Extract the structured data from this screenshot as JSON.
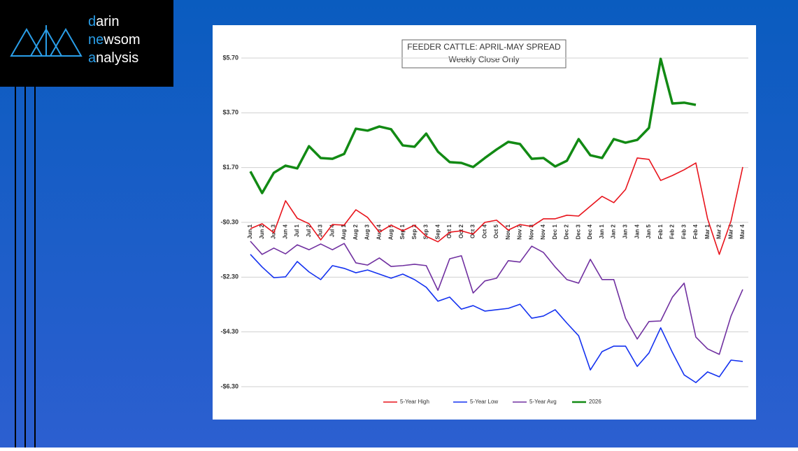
{
  "logo": [
    {
      "accent": "d",
      "rest": "arin"
    },
    {
      "accent": "ne",
      "rest": "wsom"
    },
    {
      "accent": "a",
      "rest": "nalysis"
    }
  ],
  "chart_data": {
    "type": "line",
    "title": "FEEDER CATTLE: APRIL-MAY SPREAD",
    "subtitle": "Weekly Close Only",
    "categories": [
      "Jun 1",
      "Jun 2",
      "Jun 3",
      "Jun 4",
      "Jul 1",
      "Jul 2",
      "Jul 3",
      "Jul 4",
      "Aug 1",
      "Aug 2",
      "Aug 3",
      "Aug 4",
      "Aug 5",
      "Sep 1",
      "Sep 2",
      "Sep 3",
      "Sep 4",
      "Oct 1",
      "Oct 2",
      "Oct 3",
      "Oct 4",
      "Oct 5",
      "Nov 1",
      "Nov 2",
      "Nov 3",
      "Nov 4",
      "Dec 1",
      "Dec 2",
      "Dec 3",
      "Dec 4",
      "Jan 1",
      "Jan 2",
      "Jan 3",
      "Jan 4",
      "Jan 5",
      "Feb 1",
      "Feb 2",
      "Feb 3",
      "Feb 4",
      "Mar 1",
      "Mar 2",
      "Mar 3",
      "Mar 4"
    ],
    "series": [
      {
        "name": "5-Year High",
        "color": "#e8141c",
        "width": 1.6,
        "values": [
          -0.53,
          -0.35,
          -0.68,
          0.49,
          -0.15,
          -0.35,
          -0.94,
          -0.38,
          -0.4,
          0.16,
          -0.12,
          -0.66,
          -0.4,
          -0.61,
          -0.4,
          -0.81,
          -1.01,
          -0.66,
          -0.61,
          -0.73,
          -0.3,
          -0.22,
          -0.58,
          -0.38,
          -0.45,
          -0.17,
          -0.17,
          -0.04,
          -0.07,
          0.29,
          0.65,
          0.42,
          0.9,
          2.05,
          2.0,
          1.23,
          1.41,
          1.62,
          1.87,
          -0.17,
          -1.47,
          -0.25,
          1.72
        ]
      },
      {
        "name": "5-Year Low",
        "color": "#1432f0",
        "width": 1.6,
        "values": [
          -1.47,
          -1.93,
          -2.32,
          -2.29,
          -1.73,
          -2.11,
          -2.39,
          -1.88,
          -1.98,
          -2.14,
          -2.04,
          -2.19,
          -2.34,
          -2.19,
          -2.39,
          -2.67,
          -3.18,
          -3.03,
          -3.47,
          -3.34,
          -3.54,
          -3.49,
          -3.44,
          -3.29,
          -3.8,
          -3.72,
          -3.49,
          -3.98,
          -4.44,
          -5.69,
          -5.02,
          -4.82,
          -4.82,
          -5.56,
          -5.07,
          -4.15,
          -5.05,
          -5.87,
          -6.15,
          -5.76,
          -5.94,
          -5.33,
          -5.38
        ]
      },
      {
        "name": "5-Year Avg",
        "color": "#7030a0",
        "width": 1.6,
        "values": [
          -0.99,
          -1.47,
          -1.24,
          -1.45,
          -1.12,
          -1.3,
          -1.09,
          -1.3,
          -1.07,
          -1.78,
          -1.86,
          -1.6,
          -1.91,
          -1.88,
          -1.83,
          -1.88,
          -2.78,
          -1.63,
          -1.52,
          -2.88,
          -2.44,
          -2.34,
          -1.7,
          -1.75,
          -1.17,
          -1.4,
          -1.93,
          -2.39,
          -2.52,
          -1.65,
          -2.39,
          -2.39,
          -3.8,
          -4.56,
          -3.92,
          -3.9,
          -3.03,
          -2.52,
          -4.49,
          -4.92,
          -5.12,
          -3.72,
          -2.75
        ]
      },
      {
        "name": "2026",
        "color": "#128a14",
        "width": 3.5,
        "values": [
          1.56,
          0.77,
          1.51,
          1.77,
          1.67,
          2.48,
          2.05,
          2.02,
          2.2,
          3.12,
          3.05,
          3.2,
          3.1,
          2.51,
          2.46,
          2.94,
          2.28,
          1.9,
          1.87,
          1.72,
          2.05,
          2.36,
          2.64,
          2.56,
          2.02,
          2.05,
          1.74,
          1.95,
          2.74,
          2.15,
          2.05,
          2.74,
          2.61,
          2.71,
          3.15,
          5.67,
          4.04,
          4.07,
          3.99,
          null,
          null,
          null,
          null
        ]
      }
    ],
    "ylim": [
      -6.3,
      5.7
    ],
    "yticks": [
      {
        "value": 5.7,
        "label": "$5.70"
      },
      {
        "value": 3.7,
        "label": "$3.70"
      },
      {
        "value": 1.7,
        "label": "$1.70"
      },
      {
        "value": -0.3,
        "label": "-$0.30"
      },
      {
        "value": -2.3,
        "label": "-$2.30"
      },
      {
        "value": -4.3,
        "label": "-$4.30"
      },
      {
        "value": -6.3,
        "label": "-$6.30"
      }
    ],
    "grid": true,
    "legend": "bottom"
  }
}
